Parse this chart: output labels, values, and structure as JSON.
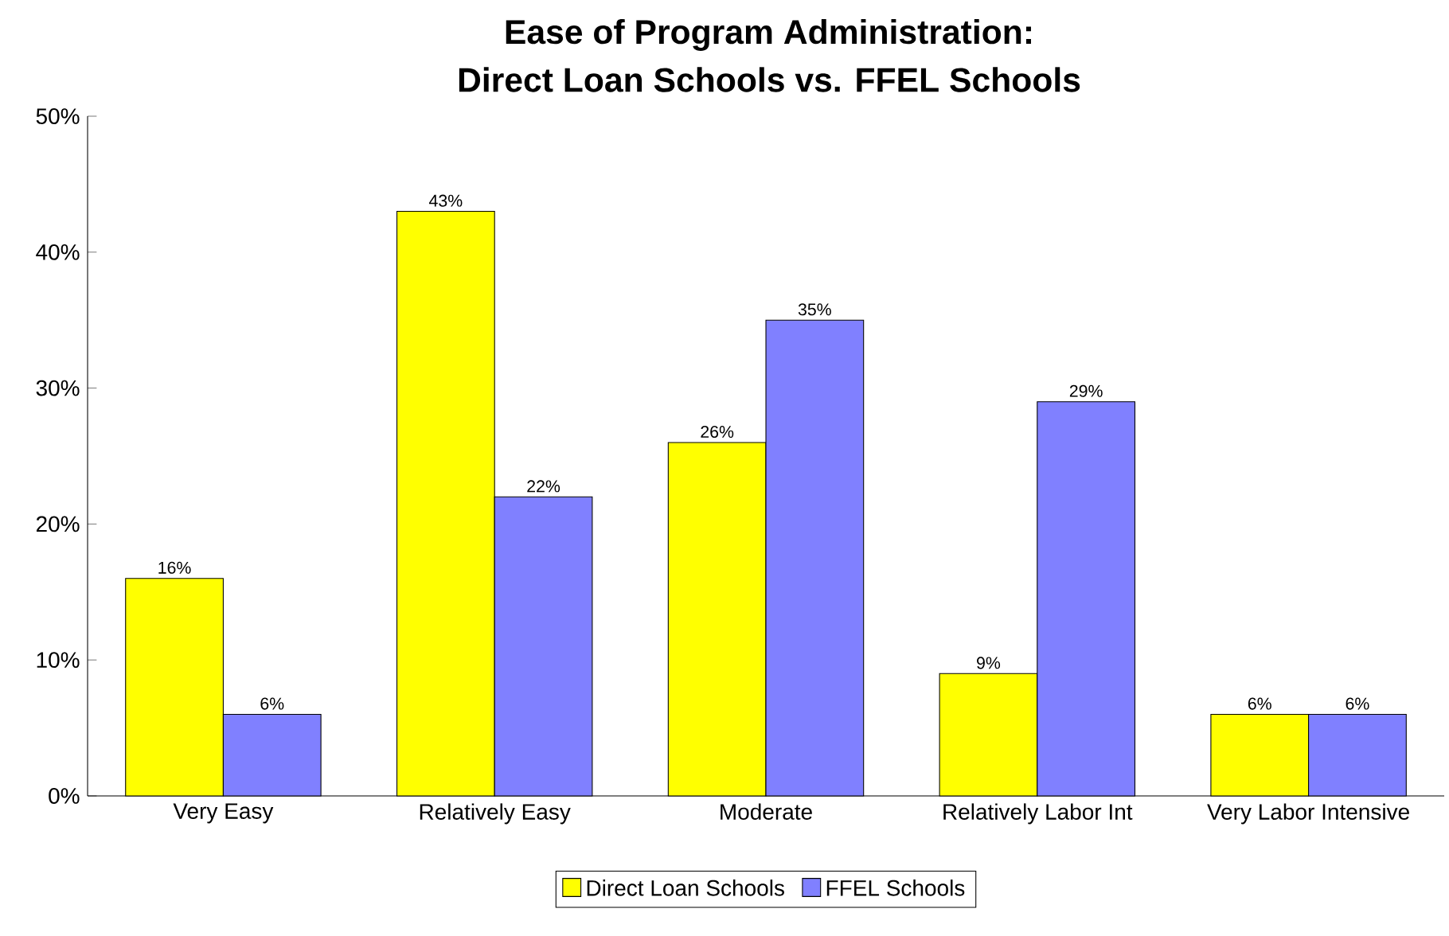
{
  "chart_data": {
    "type": "bar",
    "title": "Ease of Program Administration:",
    "subtitle": "Direct Loan Schools vs. FFEL Schools",
    "categories": [
      "Very Easy",
      "Relatively Easy",
      "Moderate",
      "Relatively Labor Int",
      "Very Labor Intensive"
    ],
    "series": [
      {
        "name": "Direct Loan Schools",
        "color": "#ffff00",
        "values": [
          16,
          43,
          26,
          9,
          6
        ],
        "value_labels": [
          "16%",
          "43%",
          "26%",
          "9%",
          "6%"
        ]
      },
      {
        "name": "FFEL Schools",
        "color": "#8080ff",
        "values": [
          6,
          22,
          35,
          29,
          6
        ],
        "value_labels": [
          "6%",
          "22%",
          "35%",
          "29%",
          "6%"
        ]
      }
    ],
    "ylim": [
      0,
      50
    ],
    "yticks": [
      {
        "value": 0,
        "label": "0%"
      },
      {
        "value": 10,
        "label": "10%"
      },
      {
        "value": 20,
        "label": "20%"
      },
      {
        "value": 30,
        "label": "30%"
      },
      {
        "value": 40,
        "label": "40%"
      },
      {
        "value": 50,
        "label": "50%"
      }
    ],
    "grid": false,
    "legend": "bottom"
  }
}
